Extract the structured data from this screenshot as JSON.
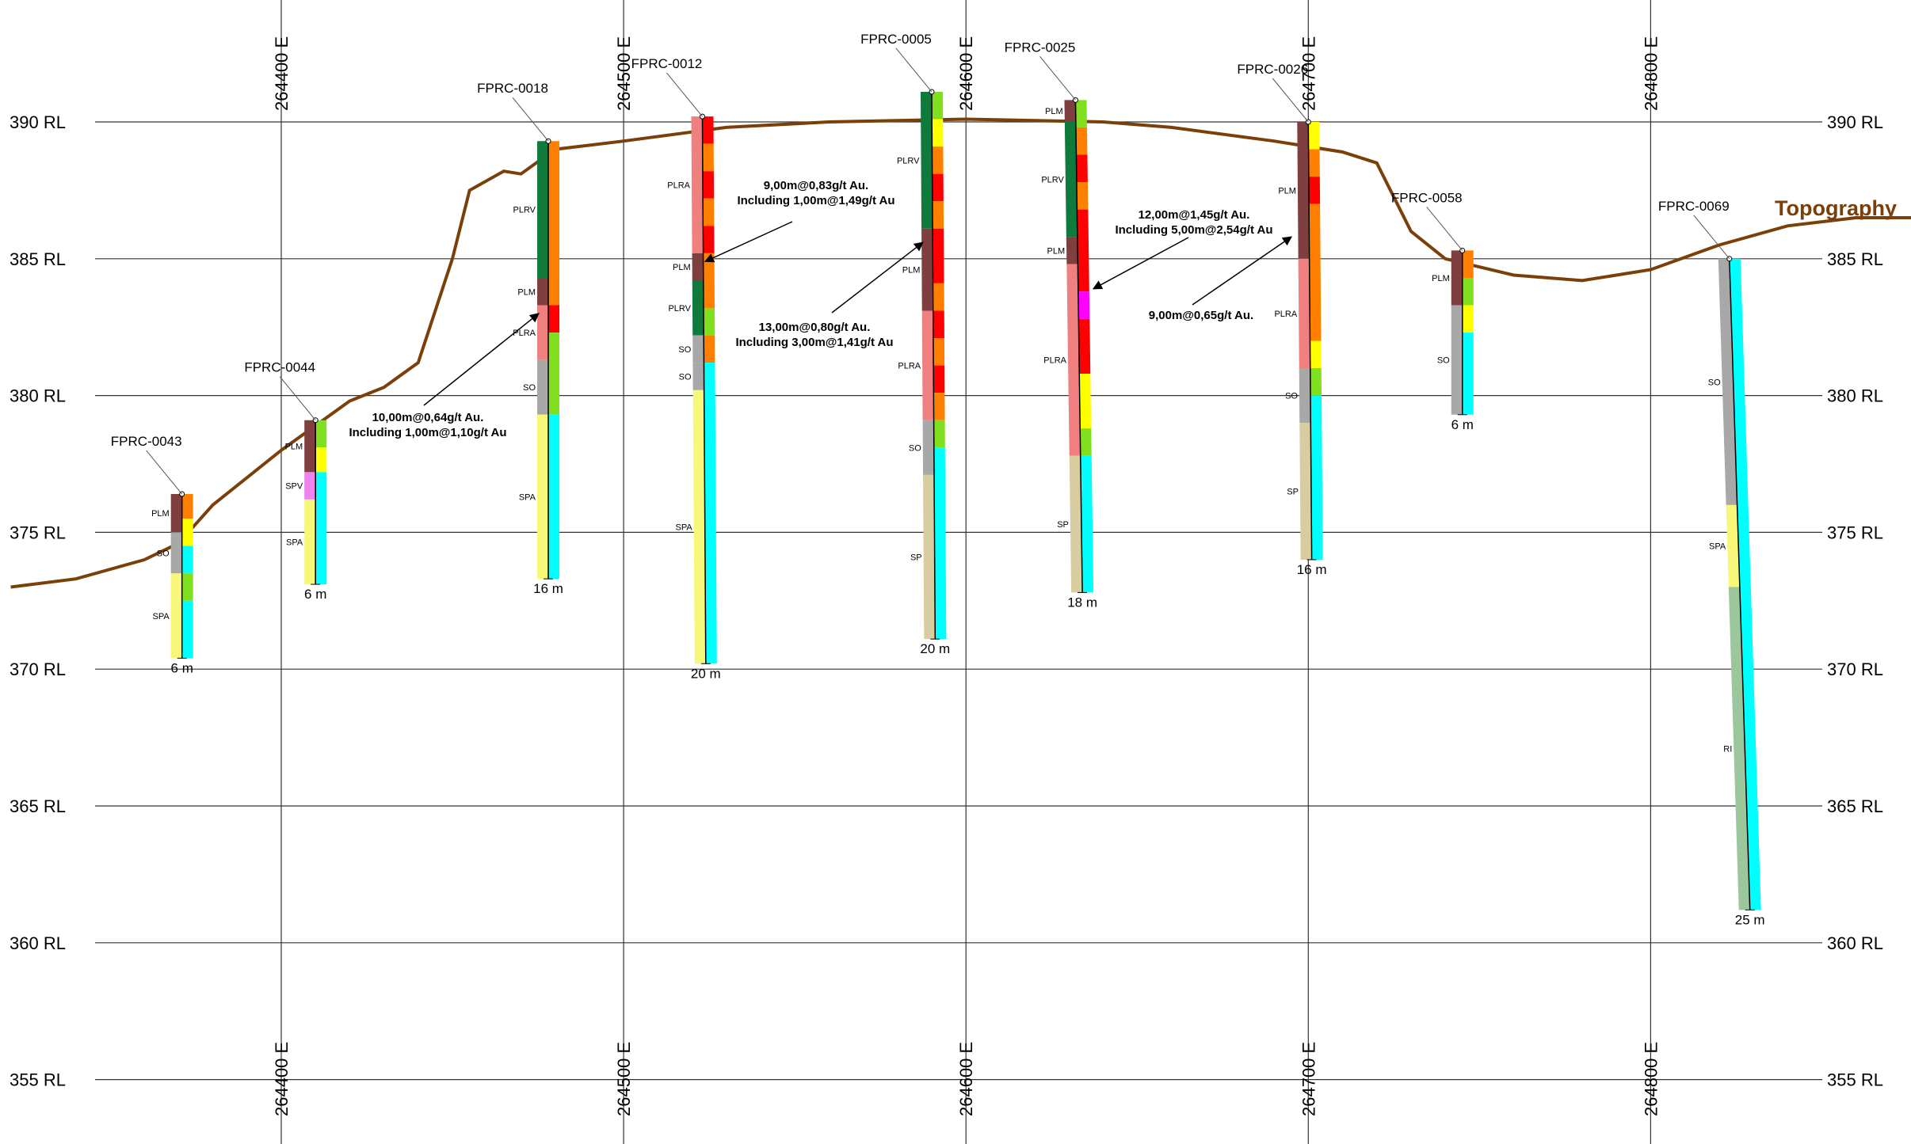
{
  "colors": {
    "topography": "#7b3f0a",
    "grid": "#333333",
    "PLM": "#7f3f3f",
    "PLRV": "#0f7a3c",
    "PLRA": "#f08080",
    "SO": "#a8a8a8",
    "SPA": "#f7f77a",
    "SPV": "#ee82ee",
    "SP": "#d8cda0",
    "RI": "#9cc79c",
    "assay_red": "#ff0000",
    "assay_orange": "#ff8000",
    "assay_yellow": "#ffff00",
    "assay_green": "#80e020",
    "assay_cyan": "#00ffff",
    "assay_magenta": "#ff00ff"
  },
  "rl_levels": [
    390,
    385,
    380,
    375,
    370,
    365,
    360,
    355
  ],
  "rl_labels": [
    "390 RL",
    "385 RL",
    "380 RL",
    "375 RL",
    "370 RL",
    "365 RL",
    "360 RL",
    "355 RL"
  ],
  "eastings": [
    264400,
    264500,
    264600,
    264700,
    264800
  ],
  "easting_labels": [
    "264400 E",
    "264500 E",
    "264600 E",
    "264700 E",
    "264800 E"
  ],
  "topography_label": "Topography",
  "topography_profile": [
    [
      264321,
      373.0
    ],
    [
      264340,
      373.3
    ],
    [
      264360,
      374.0
    ],
    [
      264370,
      374.6
    ],
    [
      264380,
      376.0
    ],
    [
      264400,
      378.0
    ],
    [
      264420,
      379.8
    ],
    [
      264430,
      380.3
    ],
    [
      264440,
      381.2
    ],
    [
      264450,
      385.0
    ],
    [
      264455,
      387.5
    ],
    [
      264465,
      388.2
    ],
    [
      264470,
      388.1
    ],
    [
      264480,
      389.0
    ],
    [
      264500,
      389.3
    ],
    [
      264530,
      389.8
    ],
    [
      264560,
      390.0
    ],
    [
      264600,
      390.1
    ],
    [
      264640,
      390.0
    ],
    [
      264660,
      389.8
    ],
    [
      264690,
      389.3
    ],
    [
      264710,
      388.9
    ],
    [
      264720,
      388.5
    ],
    [
      264730,
      386.0
    ],
    [
      264740,
      385.0
    ],
    [
      264760,
      384.4
    ],
    [
      264780,
      384.2
    ],
    [
      264800,
      384.6
    ],
    [
      264820,
      385.5
    ],
    [
      264840,
      386.2
    ],
    [
      264860,
      386.5
    ],
    [
      264880,
      386.5
    ]
  ],
  "holes": [
    {
      "id": "FPRC-0043",
      "depth_label": "6 m",
      "collar_e": 264371,
      "collar_rl": 376.4,
      "bottom_e": 264371,
      "bottom_rl": 370.4,
      "litho": [
        {
          "code": "PLM",
          "from": 376.4,
          "to": 375.0
        },
        {
          "code": "SO",
          "from": 375.0,
          "to": 373.5
        },
        {
          "code": "SPA",
          "from": 373.5,
          "to": 370.4
        }
      ],
      "assay": [
        {
          "c": "assay_orange",
          "from": 376.4,
          "to": 375.5
        },
        {
          "c": "assay_yellow",
          "from": 375.5,
          "to": 374.5
        },
        {
          "c": "assay_cyan",
          "from": 374.5,
          "to": 373.5
        },
        {
          "c": "assay_green",
          "from": 373.5,
          "to": 372.5
        },
        {
          "c": "assay_cyan",
          "from": 372.5,
          "to": 370.4
        }
      ],
      "label_pos": "left"
    },
    {
      "id": "FPRC-0044",
      "depth_label": "6 m",
      "collar_e": 264410,
      "collar_rl": 379.1,
      "bottom_e": 264410,
      "bottom_rl": 373.1,
      "litho": [
        {
          "code": "PLM",
          "from": 379.1,
          "to": 377.2
        },
        {
          "code": "SPV",
          "from": 377.2,
          "to": 376.2
        },
        {
          "code": "SPA",
          "from": 376.2,
          "to": 373.1
        }
      ],
      "assay": [
        {
          "c": "assay_green",
          "from": 379.1,
          "to": 378.1
        },
        {
          "c": "assay_yellow",
          "from": 378.1,
          "to": 377.2
        },
        {
          "c": "assay_cyan",
          "from": 377.2,
          "to": 373.1
        }
      ],
      "label_pos": "left"
    },
    {
      "id": "FPRC-0018",
      "depth_label": "16 m",
      "collar_e": 264478,
      "collar_rl": 389.3,
      "bottom_e": 264478,
      "bottom_rl": 373.3,
      "litho": [
        {
          "code": "PLRV",
          "from": 389.3,
          "to": 384.3
        },
        {
          "code": "PLM",
          "from": 384.3,
          "to": 383.3
        },
        {
          "code": "PLRA",
          "from": 383.3,
          "to": 381.3
        },
        {
          "code": "SO",
          "from": 381.3,
          "to": 379.3
        },
        {
          "code": "SPA",
          "from": 379.3,
          "to": 373.3
        }
      ],
      "assay": [
        {
          "c": "assay_orange",
          "from": 389.3,
          "to": 383.3
        },
        {
          "c": "assay_red",
          "from": 383.3,
          "to": 382.3
        },
        {
          "c": "assay_green",
          "from": 382.3,
          "to": 379.3
        },
        {
          "c": "assay_cyan",
          "from": 379.3,
          "to": 373.3
        }
      ],
      "label_pos": "left"
    },
    {
      "id": "FPRC-0012",
      "depth_label": "20 m",
      "collar_e": 264523,
      "collar_rl": 390.2,
      "bottom_e": 264524,
      "bottom_rl": 370.2,
      "litho": [
        {
          "code": "PLRA",
          "from": 390.2,
          "to": 385.2
        },
        {
          "code": "PLM",
          "from": 385.2,
          "to": 384.2
        },
        {
          "code": "PLRV",
          "from": 384.2,
          "to": 382.2
        },
        {
          "code": "SO",
          "from": 382.2,
          "to": 381.2
        },
        {
          "code": "SO",
          "from": 381.2,
          "to": 380.2
        },
        {
          "code": "SPA",
          "from": 380.2,
          "to": 370.2
        }
      ],
      "assay": [
        {
          "c": "assay_red",
          "from": 390.2,
          "to": 389.2
        },
        {
          "c": "assay_orange",
          "from": 389.2,
          "to": 388.2
        },
        {
          "c": "assay_red",
          "from": 388.2,
          "to": 387.2
        },
        {
          "c": "assay_orange",
          "from": 387.2,
          "to": 386.2
        },
        {
          "c": "assay_red",
          "from": 386.2,
          "to": 385.2
        },
        {
          "c": "assay_orange",
          "from": 385.2,
          "to": 383.2
        },
        {
          "c": "assay_green",
          "from": 383.2,
          "to": 382.2
        },
        {
          "c": "assay_orange",
          "from": 382.2,
          "to": 381.2
        },
        {
          "c": "assay_cyan",
          "from": 381.2,
          "to": 370.2
        }
      ],
      "label_pos": "left"
    },
    {
      "id": "FPRC-0005",
      "depth_label": "20 m",
      "collar_e": 264590,
      "collar_rl": 391.1,
      "bottom_e": 264591,
      "bottom_rl": 371.1,
      "litho": [
        {
          "code": "PLRV",
          "from": 391.1,
          "to": 386.1
        },
        {
          "code": "PLM",
          "from": 386.1,
          "to": 383.1
        },
        {
          "code": "PLRA",
          "from": 383.1,
          "to": 379.1
        },
        {
          "code": "SO",
          "from": 379.1,
          "to": 377.1
        },
        {
          "code": "SP",
          "from": 377.1,
          "to": 371.1
        }
      ],
      "assay": [
        {
          "c": "assay_green",
          "from": 391.1,
          "to": 390.1
        },
        {
          "c": "assay_yellow",
          "from": 390.1,
          "to": 389.1
        },
        {
          "c": "assay_orange",
          "from": 389.1,
          "to": 388.1
        },
        {
          "c": "assay_red",
          "from": 388.1,
          "to": 387.1
        },
        {
          "c": "assay_orange",
          "from": 387.1,
          "to": 386.1
        },
        {
          "c": "assay_red",
          "from": 386.1,
          "to": 384.1
        },
        {
          "c": "assay_orange",
          "from": 384.1,
          "to": 383.1
        },
        {
          "c": "assay_red",
          "from": 383.1,
          "to": 382.1
        },
        {
          "c": "assay_orange",
          "from": 382.1,
          "to": 381.1
        },
        {
          "c": "assay_red",
          "from": 381.1,
          "to": 380.1
        },
        {
          "c": "assay_orange",
          "from": 380.1,
          "to": 379.1
        },
        {
          "c": "assay_green",
          "from": 379.1,
          "to": 378.1
        },
        {
          "c": "assay_cyan",
          "from": 378.1,
          "to": 371.1
        }
      ],
      "label_pos": "left"
    },
    {
      "id": "FPRC-0025",
      "depth_label": "18 m",
      "collar_e": 264632,
      "collar_rl": 390.8,
      "bottom_e": 264634,
      "bottom_rl": 372.8,
      "litho": [
        {
          "code": "PLM",
          "from": 390.8,
          "to": 390.0
        },
        {
          "code": "PLRV",
          "from": 390.0,
          "to": 385.8
        },
        {
          "code": "PLM",
          "from": 385.8,
          "to": 384.8
        },
        {
          "code": "PLRA",
          "from": 384.8,
          "to": 377.8
        },
        {
          "code": "SP",
          "from": 377.8,
          "to": 372.8
        }
      ],
      "assay": [
        {
          "c": "assay_green",
          "from": 390.8,
          "to": 389.8
        },
        {
          "c": "assay_orange",
          "from": 389.8,
          "to": 388.8
        },
        {
          "c": "assay_red",
          "from": 388.8,
          "to": 387.8
        },
        {
          "c": "assay_orange",
          "from": 387.8,
          "to": 386.8
        },
        {
          "c": "assay_red",
          "from": 386.8,
          "to": 383.8
        },
        {
          "c": "assay_magenta",
          "from": 383.8,
          "to": 382.8
        },
        {
          "c": "assay_red",
          "from": 382.8,
          "to": 380.8
        },
        {
          "c": "assay_yellow",
          "from": 380.8,
          "to": 378.8
        },
        {
          "c": "assay_green",
          "from": 378.8,
          "to": 377.8
        },
        {
          "c": "assay_cyan",
          "from": 377.8,
          "to": 372.8
        }
      ],
      "label_pos": "left"
    },
    {
      "id": "FPRC-0026",
      "depth_label": "16 m",
      "collar_e": 264700,
      "collar_rl": 390.0,
      "bottom_e": 264701,
      "bottom_rl": 374.0,
      "litho": [
        {
          "code": "PLM",
          "from": 390.0,
          "to": 385.0
        },
        {
          "code": "PLRA",
          "from": 385.0,
          "to": 381.0
        },
        {
          "code": "SO",
          "from": 381.0,
          "to": 379.0
        },
        {
          "code": "SP",
          "from": 379.0,
          "to": 374.0
        }
      ],
      "assay": [
        {
          "c": "assay_yellow",
          "from": 390.0,
          "to": 389.0
        },
        {
          "c": "assay_orange",
          "from": 389.0,
          "to": 388.0
        },
        {
          "c": "assay_red",
          "from": 388.0,
          "to": 387.0
        },
        {
          "c": "assay_orange",
          "from": 387.0,
          "to": 382.0
        },
        {
          "c": "assay_yellow",
          "from": 382.0,
          "to": 381.0
        },
        {
          "c": "assay_green",
          "from": 381.0,
          "to": 380.0
        },
        {
          "c": "assay_cyan",
          "from": 380.0,
          "to": 374.0
        }
      ],
      "label_pos": "left"
    },
    {
      "id": "FPRC-0058",
      "depth_label": "6 m",
      "collar_e": 264745,
      "collar_rl": 385.3,
      "bottom_e": 264745,
      "bottom_rl": 379.3,
      "litho": [
        {
          "code": "PLM",
          "from": 385.3,
          "to": 383.3
        },
        {
          "code": "SO",
          "from": 383.3,
          "to": 379.3
        }
      ],
      "assay": [
        {
          "c": "assay_orange",
          "from": 385.3,
          "to": 384.3
        },
        {
          "c": "assay_green",
          "from": 384.3,
          "to": 383.3
        },
        {
          "c": "assay_yellow",
          "from": 383.3,
          "to": 382.3
        },
        {
          "c": "assay_cyan",
          "from": 382.3,
          "to": 379.3
        }
      ],
      "label_pos": "left"
    },
    {
      "id": "FPRC-0069",
      "depth_label": "25 m",
      "collar_e": 264823,
      "collar_rl": 385.0,
      "bottom_e": 264829,
      "bottom_rl": 361.2,
      "litho": [
        {
          "code": "SO",
          "from": 385.0,
          "to": 376.0
        },
        {
          "code": "SPA",
          "from": 376.0,
          "to": 373.0
        },
        {
          "code": "RI",
          "from": 373.0,
          "to": 361.2
        }
      ],
      "assay": [
        {
          "c": "assay_cyan",
          "from": 385.0,
          "to": 361.2
        }
      ],
      "label_pos": "left"
    }
  ],
  "intercepts": [
    {
      "line1": "10,00m@0,64g/t Au.",
      "line2": "Including 1,00m@1,10g/t Au",
      "hole": "FPRC-0018"
    },
    {
      "line1": "9,00m@0,83g/t Au.",
      "line2": "Including 1,00m@1,49g/t Au",
      "hole": "FPRC-0012"
    },
    {
      "line1": "13,00m@0,80g/t Au.",
      "line2": "Including 3,00m@1,41g/t Au",
      "hole": "FPRC-0005"
    },
    {
      "line1": "12,00m@1,45g/t Au.",
      "line2": "Including 5,00m@2,54g/t Au",
      "hole": "FPRC-0025"
    },
    {
      "line1": "9,00m@0,65g/t Au.",
      "line2": "",
      "hole": "FPRC-0026"
    }
  ]
}
